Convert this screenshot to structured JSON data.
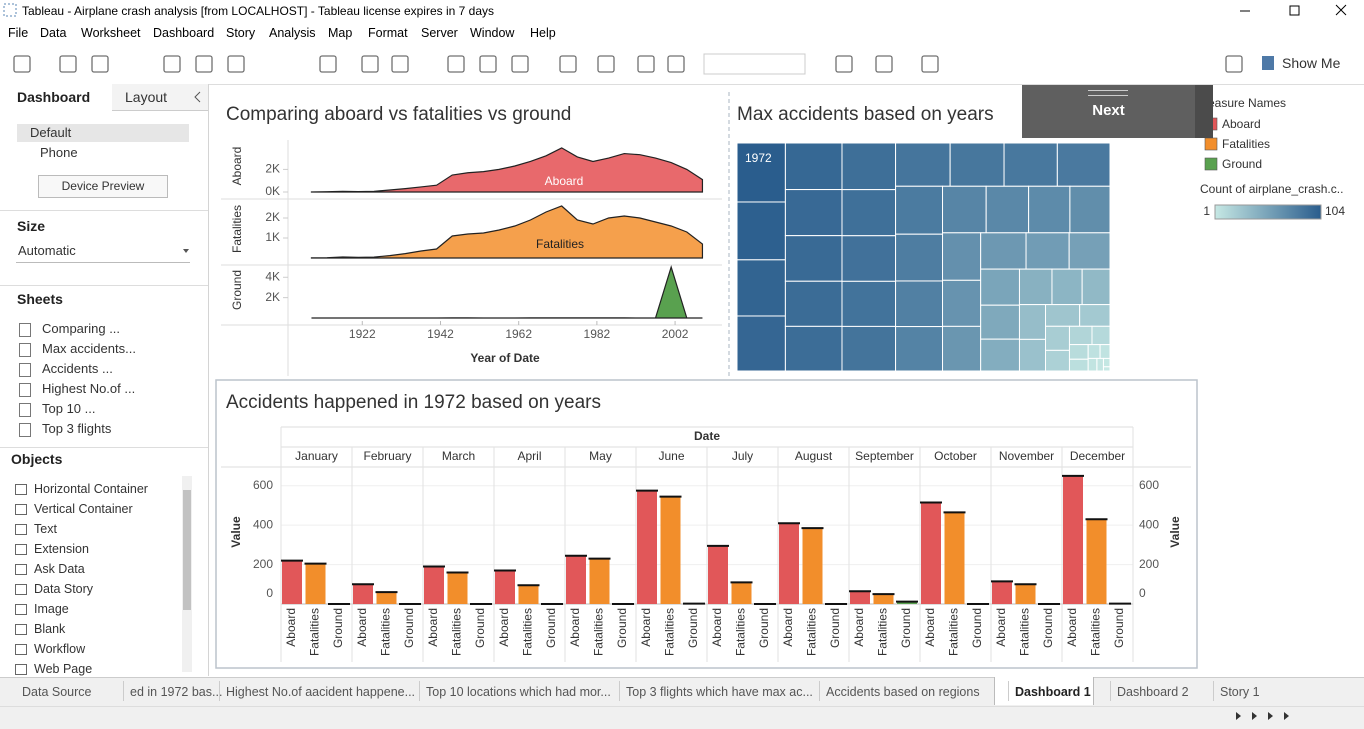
{
  "window": {
    "title": "Tableau - Airplane crash analysis [from LOCALHOST] - Tableau license expires in 7 days",
    "menu": [
      "File",
      "Data",
      "Worksheet",
      "Dashboard",
      "Story",
      "Analysis",
      "Map",
      "Format",
      "Server",
      "Window",
      "Help"
    ]
  },
  "toolbar": {
    "show_me": "Show Me"
  },
  "side_panel": {
    "tabs": [
      "Dashboard",
      "Layout"
    ],
    "devices": [
      "Default",
      "Phone"
    ],
    "device_preview": "Device Preview",
    "size": {
      "label": "Size",
      "value": "Automatic"
    },
    "sheets": {
      "label": "Sheets",
      "items": [
        "Comparing ...",
        "Max accidents...",
        "Accidents ...",
        "Highest No.of ...",
        "Top 10 ...",
        "Top 3 flights"
      ]
    },
    "objects": {
      "label": "Objects",
      "items": [
        "Horizontal Container",
        "Vertical Container",
        "Text",
        "Extension",
        "Ask Data",
        "Data Story",
        "Image",
        "Blank",
        "Workflow",
        "Web Page"
      ]
    }
  },
  "dashboard": {
    "next_button": "Next"
  },
  "sheet_tabs": [
    "Data Source",
    "ed in 1972 bas...",
    "Highest No.of aacident happene...",
    "Top 10 locations which had mor...",
    "Top 3 flights which have max ac...",
    "Accidents based on regions",
    "Dashboard 1",
    "Dashboard 2",
    "Story 1"
  ],
  "chart_data": [
    {
      "type": "area",
      "title": "Comparing aboard vs fatalities vs ground",
      "x": [
        1909,
        1913,
        1917,
        1921,
        1925,
        1929,
        1933,
        1937,
        1941,
        1945,
        1949,
        1953,
        1957,
        1961,
        1965,
        1969,
        1973,
        1977,
        1981,
        1985,
        1989,
        1993,
        1997,
        2001,
        2005,
        2009
      ],
      "xlim": [
        1903,
        2014
      ],
      "xticks": [
        1922,
        1942,
        1962,
        1982,
        2002
      ],
      "x_label": "Year of Date",
      "panels": [
        {
          "name": "Aboard",
          "color": "#e8696c",
          "ylim": [
            0,
            4600
          ],
          "yticks": [
            {
              "value": 0,
              "label": "0K"
            },
            {
              "value": 2000,
              "label": "2K"
            }
          ],
          "values": [
            5,
            20,
            60,
            40,
            60,
            180,
            300,
            450,
            600,
            1500,
            1700,
            1800,
            2000,
            2300,
            2700,
            3200,
            3900,
            3100,
            2700,
            3000,
            3400,
            3300,
            3000,
            2600,
            2000,
            1100
          ]
        },
        {
          "name": "Fatalities",
          "color": "#f5a04c",
          "ylim": [
            0,
            2900
          ],
          "yticks": [
            {
              "value": 1000,
              "label": "1K"
            },
            {
              "value": 2000,
              "label": "2K"
            }
          ],
          "values": [
            5,
            15,
            50,
            30,
            45,
            120,
            220,
            350,
            450,
            1100,
            1200,
            1250,
            1400,
            1600,
            1900,
            2300,
            2600,
            1900,
            1700,
            2000,
            2100,
            2000,
            1800,
            1600,
            1300,
            700
          ]
        },
        {
          "name": "Ground",
          "color": "#59a14f",
          "ylim": [
            0,
            5500
          ],
          "yticks": [
            {
              "value": 2000,
              "label": "2K"
            },
            {
              "value": 4000,
              "label": "4K"
            }
          ],
          "values": [
            0,
            0,
            0,
            0,
            0,
            0,
            0,
            0,
            0,
            10,
            20,
            0,
            5,
            5,
            10,
            10,
            20,
            15,
            10,
            20,
            10,
            5,
            10,
            5000,
            0,
            0
          ]
        }
      ]
    },
    {
      "type": "treemap",
      "title": "Max accidents based on years",
      "categories": [
        "1972",
        null,
        null,
        null,
        null,
        null,
        null,
        null,
        null,
        null,
        null,
        null,
        null,
        null,
        null,
        null,
        null,
        null,
        null,
        null,
        null,
        null,
        null,
        null,
        null,
        null,
        null,
        null,
        null,
        null,
        null,
        null,
        null,
        null,
        null,
        null,
        null,
        null,
        null,
        null,
        null,
        null,
        null,
        null,
        null,
        null,
        null,
        null,
        null,
        null,
        null,
        null,
        null,
        null
      ],
      "values": [
        104,
        102,
        99,
        97,
        96,
        95,
        94,
        93,
        92,
        91,
        90,
        89,
        88,
        87,
        86,
        85,
        84,
        83,
        82,
        80,
        78,
        76,
        74,
        72,
        70,
        68,
        66,
        64,
        62,
        60,
        57,
        54,
        51,
        48,
        45,
        42,
        39,
        36,
        33,
        30,
        27,
        24,
        21,
        18,
        15,
        12,
        10,
        8,
        6,
        5,
        4,
        3,
        2,
        1
      ],
      "color_legend": {
        "title": "Count of airplane_crash.c..",
        "min": 1,
        "max": 104,
        "colors": [
          "#c6e8e4",
          "#2a5d8d"
        ]
      }
    },
    {
      "type": "bar",
      "title": "Accidents happened in 1972 based on years",
      "x_header": "Date",
      "legend_title": "easure Names",
      "categories": [
        "January",
        "February",
        "March",
        "April",
        "May",
        "June",
        "July",
        "August",
        "September",
        "October",
        "November",
        "December"
      ],
      "series": [
        {
          "name": "Aboard",
          "color": "#e15759",
          "values": [
            220,
            100,
            190,
            170,
            245,
            575,
            295,
            410,
            65,
            515,
            115,
            650
          ]
        },
        {
          "name": "Fatalities",
          "color": "#f28e2b",
          "values": [
            205,
            60,
            160,
            95,
            230,
            545,
            110,
            385,
            50,
            465,
            100,
            430
          ]
        },
        {
          "name": "Ground",
          "color": "#59a14f",
          "values": [
            0,
            0,
            0,
            0,
            0,
            2,
            0,
            0,
            12,
            0,
            0,
            2
          ]
        }
      ],
      "ylim": [
        0,
        690
      ],
      "yticks": [
        0,
        200,
        400,
        600
      ],
      "y_label": "Value"
    }
  ]
}
